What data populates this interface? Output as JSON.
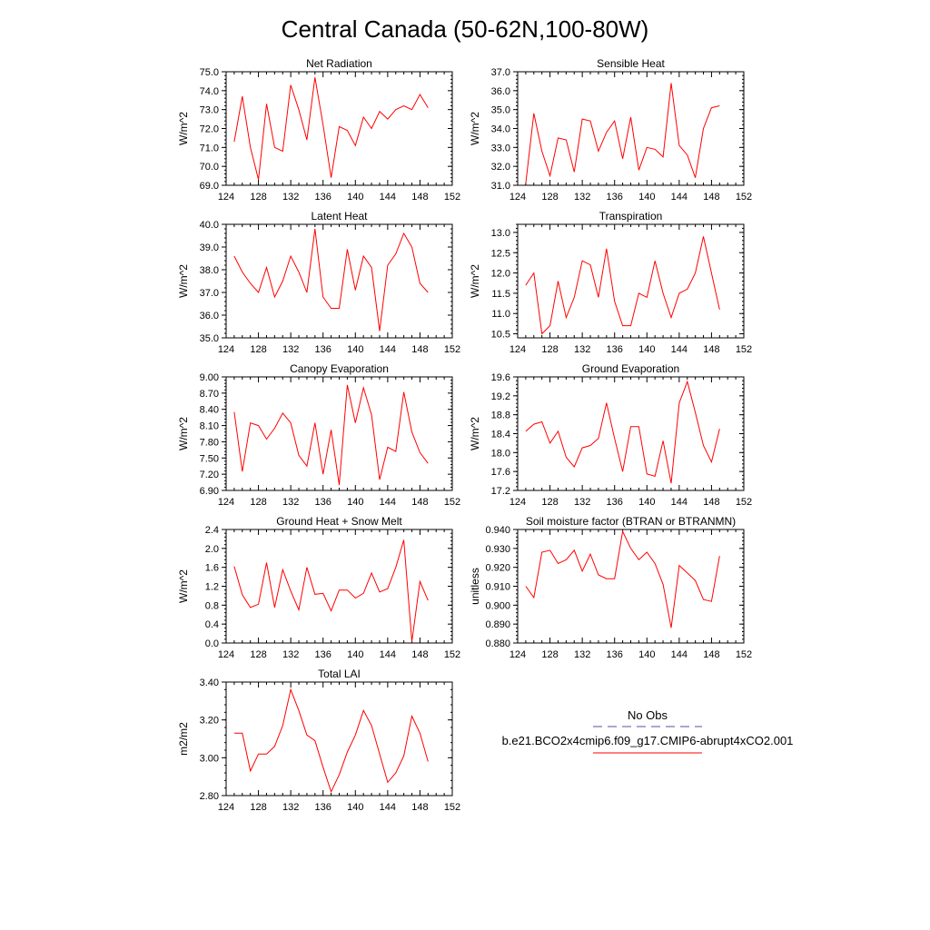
{
  "figure": {
    "title": "Central Canada (50-62N,100-80W)"
  },
  "legend": {
    "obs_label": "No Obs",
    "obs_color": "#5050a0",
    "case_label": "b.e21.BCO2x4cmip6.f09_g17.CMIP6-abrupt4xCO2.001",
    "case_color": "#ff0000"
  },
  "chart_data": [
    {
      "type": "line",
      "title": "Net Radiation",
      "ylabel": "W/m^2",
      "xlim": [
        124,
        152
      ],
      "ylim": [
        69.0,
        75.0
      ],
      "xticks": [
        124,
        128,
        132,
        136,
        140,
        144,
        148,
        152
      ],
      "yticks": [
        "69.0",
        "70.0",
        "71.0",
        "72.0",
        "73.0",
        "74.0",
        "75.0"
      ],
      "x": [
        125,
        126,
        127,
        128,
        129,
        130,
        131,
        132,
        133,
        134,
        135,
        136,
        137,
        138,
        139,
        140,
        141,
        142,
        143,
        144,
        145,
        146,
        147,
        148,
        149
      ],
      "series": [
        {
          "values": [
            71.3,
            73.7,
            71.0,
            69.3,
            73.3,
            71.0,
            70.8,
            74.3,
            73.0,
            71.4,
            74.7,
            72.2,
            69.4,
            72.1,
            71.9,
            71.1,
            72.6,
            72.0,
            72.9,
            72.5,
            73.0,
            73.2,
            73.0,
            73.8,
            73.1
          ],
          "color": "#ff0000"
        }
      ]
    },
    {
      "type": "line",
      "title": "Sensible Heat",
      "ylabel": "W/m^2",
      "xlim": [
        124,
        152
      ],
      "ylim": [
        31.0,
        37.0
      ],
      "xticks": [
        124,
        128,
        132,
        136,
        140,
        144,
        148,
        152
      ],
      "yticks": [
        "31.0",
        "32.0",
        "33.0",
        "34.0",
        "35.0",
        "36.0",
        "37.0"
      ],
      "x": [
        125,
        126,
        127,
        128,
        129,
        130,
        131,
        132,
        133,
        134,
        135,
        136,
        137,
        138,
        139,
        140,
        141,
        142,
        143,
        144,
        145,
        146,
        147,
        148,
        149
      ],
      "series": [
        {
          "values": [
            31.1,
            34.8,
            32.8,
            31.5,
            33.5,
            33.4,
            31.7,
            34.5,
            34.4,
            32.8,
            33.8,
            34.4,
            32.4,
            34.6,
            31.8,
            33.0,
            32.9,
            32.5,
            36.4,
            33.1,
            32.6,
            31.4,
            34.0,
            35.1,
            35.2
          ],
          "color": "#ff0000"
        }
      ]
    },
    {
      "type": "line",
      "title": "Latent Heat",
      "ylabel": "W/m^2",
      "xlim": [
        124,
        152
      ],
      "ylim": [
        35.0,
        40.0
      ],
      "xticks": [
        124,
        128,
        132,
        136,
        140,
        144,
        148,
        152
      ],
      "yticks": [
        "35.0",
        "36.0",
        "37.0",
        "38.0",
        "39.0",
        "40.0"
      ],
      "x": [
        125,
        126,
        127,
        128,
        129,
        130,
        131,
        132,
        133,
        134,
        135,
        136,
        137,
        138,
        139,
        140,
        141,
        142,
        143,
        144,
        145,
        146,
        147,
        148,
        149
      ],
      "series": [
        {
          "values": [
            38.6,
            37.9,
            37.4,
            37.0,
            38.1,
            36.8,
            37.5,
            38.6,
            37.9,
            37.0,
            39.8,
            36.8,
            36.3,
            36.3,
            38.9,
            37.1,
            38.6,
            38.1,
            35.3,
            38.2,
            38.7,
            39.6,
            39.0,
            37.4,
            37.0
          ],
          "color": "#ff0000"
        }
      ]
    },
    {
      "type": "line",
      "title": "Transpiration",
      "ylabel": "W/m^2",
      "xlim": [
        124,
        152
      ],
      "ylim": [
        10.4,
        13.2
      ],
      "xticks": [
        124,
        128,
        132,
        136,
        140,
        144,
        148,
        152
      ],
      "yticks": [
        "10.5",
        "11.0",
        "11.5",
        "12.0",
        "12.5",
        "13.0"
      ],
      "x": [
        125,
        126,
        127,
        128,
        129,
        130,
        131,
        132,
        133,
        134,
        135,
        136,
        137,
        138,
        139,
        140,
        141,
        142,
        143,
        144,
        145,
        146,
        147,
        148,
        149
      ],
      "series": [
        {
          "values": [
            11.7,
            12.0,
            10.5,
            10.7,
            11.8,
            10.9,
            11.4,
            12.3,
            12.2,
            11.4,
            12.6,
            11.3,
            10.7,
            10.7,
            11.5,
            11.4,
            12.3,
            11.5,
            10.9,
            11.5,
            11.6,
            12.0,
            12.9,
            12.0,
            11.1
          ],
          "color": "#ff0000"
        }
      ]
    },
    {
      "type": "line",
      "title": "Canopy Evaporation",
      "ylabel": "W/m^2",
      "xlim": [
        124,
        152
      ],
      "ylim": [
        6.9,
        9.0
      ],
      "xticks": [
        124,
        128,
        132,
        136,
        140,
        144,
        148,
        152
      ],
      "yticks": [
        "6.90",
        "7.20",
        "7.50",
        "7.80",
        "8.10",
        "8.40",
        "8.70",
        "9.00"
      ],
      "x": [
        125,
        126,
        127,
        128,
        129,
        130,
        131,
        132,
        133,
        134,
        135,
        136,
        137,
        138,
        139,
        140,
        141,
        142,
        143,
        144,
        145,
        146,
        147,
        148,
        149
      ],
      "series": [
        {
          "values": [
            8.35,
            7.25,
            8.15,
            8.1,
            7.85,
            8.05,
            8.33,
            8.15,
            7.55,
            7.35,
            8.15,
            7.2,
            8.02,
            7.0,
            8.85,
            8.15,
            8.8,
            8.3,
            7.1,
            7.7,
            7.62,
            8.72,
            7.98,
            7.6,
            7.4
          ],
          "color": "#ff0000"
        }
      ]
    },
    {
      "type": "line",
      "title": "Ground Evaporation",
      "ylabel": "W/m^2",
      "xlim": [
        124,
        152
      ],
      "ylim": [
        17.2,
        19.6
      ],
      "xticks": [
        124,
        128,
        132,
        136,
        140,
        144,
        148,
        152
      ],
      "yticks": [
        "17.2",
        "17.6",
        "18.0",
        "18.4",
        "18.8",
        "19.2",
        "19.6"
      ],
      "x": [
        125,
        126,
        127,
        128,
        129,
        130,
        131,
        132,
        133,
        134,
        135,
        136,
        137,
        138,
        139,
        140,
        141,
        142,
        143,
        144,
        145,
        146,
        147,
        148,
        149
      ],
      "series": [
        {
          "values": [
            18.45,
            18.6,
            18.65,
            18.2,
            18.45,
            17.9,
            17.7,
            18.1,
            18.15,
            18.3,
            19.05,
            18.3,
            17.6,
            18.55,
            18.55,
            17.55,
            17.5,
            18.25,
            17.35,
            19.05,
            19.5,
            18.85,
            18.15,
            17.8,
            18.5
          ],
          "color": "#ff0000"
        }
      ]
    },
    {
      "type": "line",
      "title": "Ground Heat + Snow Melt",
      "ylabel": "W/m^2",
      "xlim": [
        124,
        152
      ],
      "ylim": [
        0.0,
        2.4
      ],
      "xticks": [
        124,
        128,
        132,
        136,
        140,
        144,
        148,
        152
      ],
      "yticks": [
        "0.0",
        "0.4",
        "0.8",
        "1.2",
        "1.6",
        "2.0",
        "2.4"
      ],
      "x": [
        125,
        126,
        127,
        128,
        129,
        130,
        131,
        132,
        133,
        134,
        135,
        136,
        137,
        138,
        139,
        140,
        141,
        142,
        143,
        144,
        145,
        146,
        147,
        148,
        149
      ],
      "series": [
        {
          "values": [
            1.62,
            1.02,
            0.75,
            0.82,
            1.7,
            0.75,
            1.55,
            1.1,
            0.7,
            1.6,
            1.03,
            1.05,
            0.68,
            1.12,
            1.12,
            0.95,
            1.05,
            1.48,
            1.08,
            1.15,
            1.6,
            2.18,
            0.03,
            1.3,
            0.9
          ],
          "color": "#ff0000"
        }
      ]
    },
    {
      "type": "line",
      "title": "Soil moisture factor (BTRAN or BTRANMN)",
      "ylabel": "unitless",
      "xlim": [
        124,
        152
      ],
      "ylim": [
        0.88,
        0.94
      ],
      "xticks": [
        124,
        128,
        132,
        136,
        140,
        144,
        148,
        152
      ],
      "yticks": [
        "0.880",
        "0.890",
        "0.900",
        "0.910",
        "0.920",
        "0.930",
        "0.940"
      ],
      "x": [
        125,
        126,
        127,
        128,
        129,
        130,
        131,
        132,
        133,
        134,
        135,
        136,
        137,
        138,
        139,
        140,
        141,
        142,
        143,
        144,
        145,
        146,
        147,
        148,
        149
      ],
      "series": [
        {
          "values": [
            0.91,
            0.904,
            0.928,
            0.929,
            0.922,
            0.924,
            0.929,
            0.918,
            0.927,
            0.916,
            0.914,
            0.914,
            0.939,
            0.93,
            0.924,
            0.928,
            0.922,
            0.911,
            0.888,
            0.921,
            0.917,
            0.913,
            0.903,
            0.902,
            0.926
          ],
          "color": "#ff0000"
        }
      ]
    },
    {
      "type": "line",
      "title": "Total LAI",
      "ylabel": "m2/m2",
      "xlim": [
        124,
        152
      ],
      "ylim": [
        2.8,
        3.4
      ],
      "xticks": [
        124,
        128,
        132,
        136,
        140,
        144,
        148,
        152
      ],
      "yticks": [
        "2.80",
        "3.00",
        "3.20",
        "3.40"
      ],
      "x": [
        125,
        126,
        127,
        128,
        129,
        130,
        131,
        132,
        133,
        134,
        135,
        136,
        137,
        138,
        139,
        140,
        141,
        142,
        143,
        144,
        145,
        146,
        147,
        148,
        149
      ],
      "series": [
        {
          "values": [
            3.13,
            3.13,
            2.93,
            3.02,
            3.02,
            3.06,
            3.17,
            3.36,
            3.25,
            3.12,
            3.09,
            2.95,
            2.82,
            2.91,
            3.03,
            3.12,
            3.25,
            3.17,
            3.02,
            2.87,
            2.92,
            3.01,
            3.22,
            3.13,
            2.98
          ],
          "color": "#ff0000"
        }
      ]
    }
  ]
}
